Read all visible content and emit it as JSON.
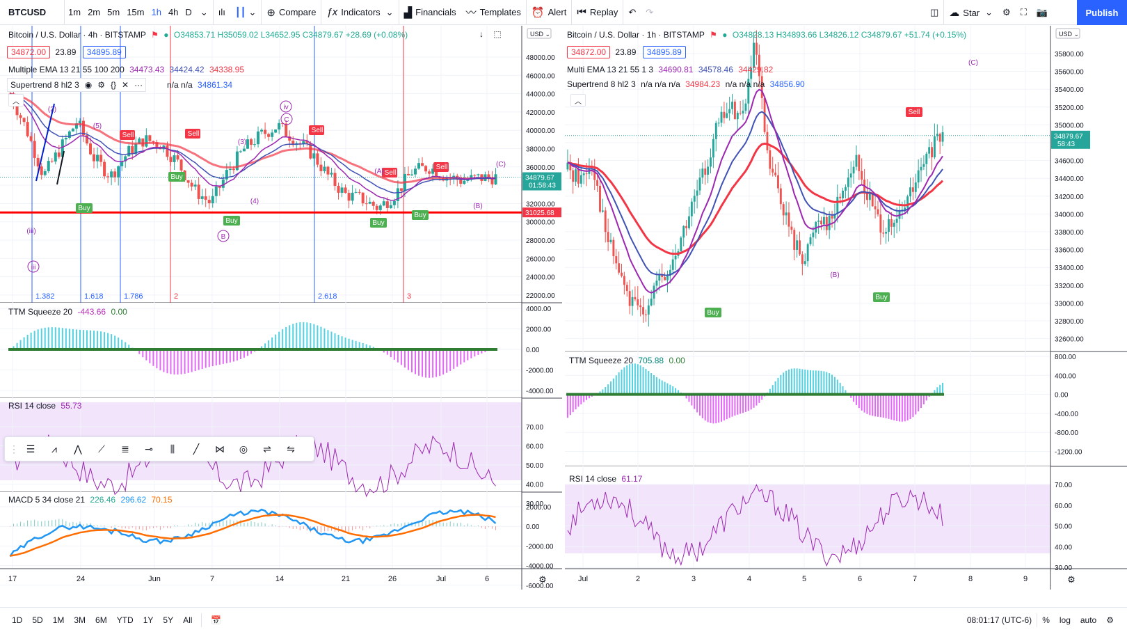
{
  "topbar": {
    "symbol": "BTCUSD",
    "timeframes": [
      "1m",
      "2m",
      "5m",
      "15m",
      "1h",
      "4h",
      "D"
    ],
    "active_timeframe": "1h",
    "compare": "Compare",
    "indicators": "Indicators",
    "financials": "Financials",
    "templates": "Templates",
    "alert": "Alert",
    "replay": "Replay",
    "star": "Star",
    "publish": "Publish"
  },
  "left_chart": {
    "title": "Bitcoin / U.S. Dollar · 4h · BITSTAMP",
    "ohlc": "O34853.71 H35059.02 L34652.95 C34879.67 +28.69 (+0.08%)",
    "bid": "34872.00",
    "spread": "23.89",
    "ask": "34895.89",
    "ema_label": "Multiple EMA 13 21 55 100 200",
    "ema_values": [
      "34473.43",
      "34424.42",
      "34338.95"
    ],
    "supertrend_label": "Supertrend 8 hl2 3",
    "supertrend_values": "n/a n/a",
    "supertrend_value": "34861.34",
    "currency": "USD",
    "price_ticks": [
      "48000.00",
      "46000.00",
      "44000.00",
      "42000.00",
      "40000.00",
      "38000.00",
      "36000.00",
      "34000.00",
      "32000.00",
      "30000.00",
      "28000.00",
      "26000.00",
      "24000.00",
      "22000.00"
    ],
    "current_price": "34879.67",
    "countdown": "01:58:43",
    "hline_price": "31025.68",
    "fib_labels": [
      "1.382",
      "1.618",
      "1.786",
      "2",
      "2.618",
      "3"
    ],
    "wave_labels": [
      "(iii)",
      "iii",
      "iv",
      "(2)",
      "(3)",
      "(4)",
      "(5)",
      "(A)",
      "(B)",
      "(C)",
      "B",
      "C"
    ],
    "signals": [
      "Buy",
      "Sell"
    ],
    "squeeze_label": "TTM Squeeze 20",
    "squeeze_values": [
      "-443.66",
      "0.00"
    ],
    "squeeze_ticks": [
      "4000.00",
      "2000.00",
      "0.00",
      "-2000.00",
      "-4000.00"
    ],
    "rsi_label": "RSI 14 close",
    "rsi_value": "55.73",
    "rsi_ticks": [
      "70.00",
      "60.00",
      "50.00",
      "40.00",
      "30.00"
    ],
    "macd_label": "MACD 5 34 close 21",
    "macd_values": [
      "226.46",
      "296.62",
      "70.15"
    ],
    "macd_ticks": [
      "2000.00",
      "0.00",
      "-2000.00",
      "-4000.00",
      "-6000.00"
    ],
    "time_ticks": [
      "17",
      "24",
      "Jun",
      "7",
      "14",
      "21",
      "26",
      "Jul",
      "6"
    ]
  },
  "right_chart": {
    "title": "Bitcoin / U.S. Dollar · 1h · BITSTAMP",
    "ohlc": "O34828.13 H34893.66 L34826.12 C34879.67 +51.74 (+0.15%)",
    "bid": "34872.00",
    "spread": "23.89",
    "ask": "34895.89",
    "ema_label": "Multi EMA 13 21 55 1 3",
    "ema_values": [
      "34690.81",
      "34578.46",
      "34429.82"
    ],
    "supertrend_label": "Supertrend 8 hl2 3",
    "supertrend_values": "n/a n/a n/a",
    "supertrend_value1": "34984.23",
    "supertrend_value2": "34856.90",
    "currency": "USD",
    "price_ticks": [
      "35800.00",
      "35600.00",
      "35400.00",
      "35200.00",
      "35000.00",
      "34800.00",
      "34600.00",
      "34400.00",
      "34200.00",
      "34000.00",
      "33800.00",
      "33600.00",
      "33400.00",
      "33200.00",
      "33000.00",
      "32800.00",
      "32600.00"
    ],
    "current_price": "34879.67",
    "countdown": "58:43",
    "squeeze_label": "TTM Squeeze 20",
    "squeeze_values": [
      "705.88",
      "0.00"
    ],
    "squeeze_ticks": [
      "800.00",
      "400.00",
      "0.00",
      "-400.00",
      "-800.00",
      "-1200.00"
    ],
    "rsi_label": "RSI 14 close",
    "rsi_value": "61.17",
    "rsi_ticks": [
      "70.00",
      "60.00",
      "50.00",
      "40.00",
      "30.00"
    ],
    "time_ticks": [
      "Jul",
      "2",
      "3",
      "4",
      "5",
      "6",
      "7",
      "8",
      "9"
    ]
  },
  "bottombar": {
    "ranges": [
      "1D",
      "5D",
      "1M",
      "3M",
      "6M",
      "YTD",
      "1Y",
      "5Y",
      "All"
    ],
    "time": "08:01:17 (UTC-6)",
    "percent": "%",
    "log": "log",
    "auto": "auto"
  },
  "colors": {
    "accent": "#2962ff",
    "red": "#f23645",
    "green": "#22ab94",
    "ema_fast": "#9c27b0",
    "ema_mid": "#3f51b5",
    "ema_slow": "#f23645"
  }
}
